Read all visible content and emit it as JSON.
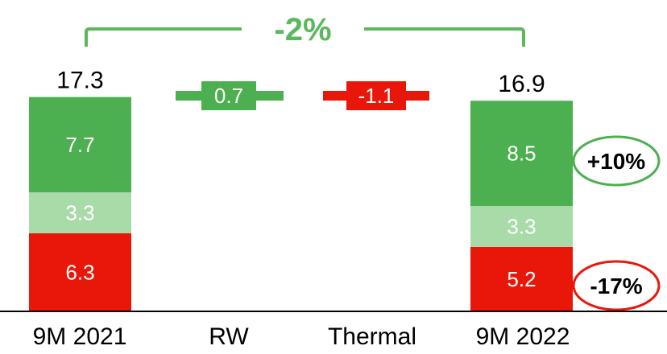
{
  "chart_data": {
    "type": "bar",
    "subtype": "stacked-waterfall",
    "categories": [
      "9M 2021",
      "RW",
      "Thermal",
      "9M 2022"
    ],
    "totals": [
      {
        "category": "9M 2021",
        "value": 17.3,
        "label": "17.3"
      },
      {
        "category": "9M 2022",
        "value": 16.9,
        "label": "16.9"
      }
    ],
    "stacks": [
      {
        "category": "9M 2021",
        "segments": [
          {
            "value": 6.3,
            "label": "6.3",
            "color": "#e8170a"
          },
          {
            "value": 3.3,
            "label": "3.3",
            "color": "#a8dba8"
          },
          {
            "value": 7.7,
            "label": "7.7",
            "color": "#4caf50"
          }
        ]
      },
      {
        "category": "9M 2022",
        "segments": [
          {
            "value": 5.2,
            "label": "5.2",
            "color": "#e8170a"
          },
          {
            "value": 3.3,
            "label": "3.3",
            "color": "#a8dba8"
          },
          {
            "value": 8.5,
            "label": "8.5",
            "color": "#4caf50"
          }
        ]
      }
    ],
    "deltas": [
      {
        "category": "RW",
        "value": 0.7,
        "label": "0.7",
        "color": "#4caf50"
      },
      {
        "category": "Thermal",
        "value": -1.1,
        "label": "-1.1",
        "color": "#e8170a"
      }
    ],
    "overall_change": {
      "label": "-2%",
      "color": "#5cb85c"
    },
    "segment_changes": [
      {
        "label": "+10%",
        "border_color": "#4caf50"
      },
      {
        "label": "-17%",
        "border_color": "#e8170a"
      }
    ],
    "text_color": "#000000",
    "value_text_color": "#ffffff"
  }
}
